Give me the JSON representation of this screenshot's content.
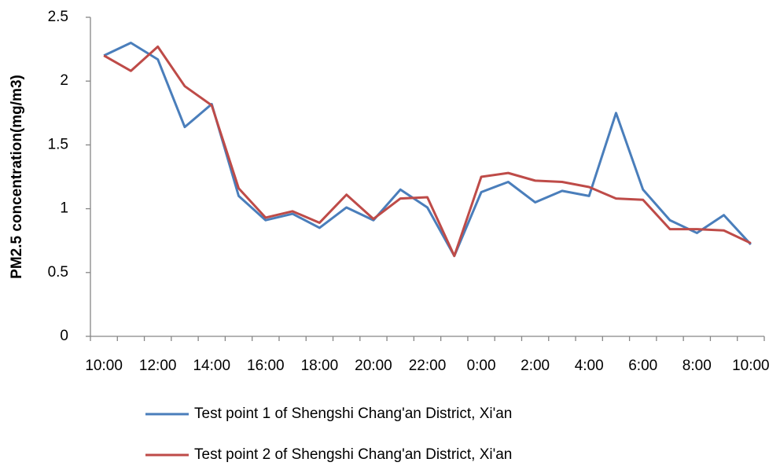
{
  "chart_data": {
    "type": "line",
    "y_label": "PM2.5 concentration(mg/m3)",
    "categories": [
      "10:00",
      null,
      "12:00",
      null,
      "14:00",
      null,
      "16:00",
      null,
      "18:00",
      null,
      "20:00",
      null,
      "22:00",
      null,
      "0:00",
      null,
      "2:00",
      null,
      "4:00",
      null,
      "6:00",
      null,
      "8:00",
      null,
      "10:00"
    ],
    "series": [
      {
        "name": "Test point 1 of Shengshi Chang'an District, Xi'an",
        "color": "#4a7ebb",
        "values": [
          2.2,
          2.3,
          2.17,
          1.64,
          1.82,
          1.1,
          0.91,
          0.96,
          0.85,
          1.01,
          0.91,
          1.15,
          1.01,
          0.63,
          1.13,
          1.21,
          1.05,
          1.14,
          1.1,
          1.75,
          1.15,
          0.91,
          0.81,
          0.95,
          0.72
        ]
      },
      {
        "name": "Test point 2 of Shengshi Chang'an District, Xi'an",
        "color": "#be4b48",
        "values": [
          2.2,
          2.08,
          2.27,
          1.96,
          1.81,
          1.16,
          0.93,
          0.98,
          0.89,
          1.11,
          0.92,
          1.08,
          1.09,
          0.63,
          1.25,
          1.28,
          1.22,
          1.21,
          1.17,
          1.08,
          1.07,
          0.84,
          0.84,
          0.83,
          0.73
        ]
      }
    ],
    "ylim": [
      0,
      2.5
    ],
    "yticks": [
      0,
      0.5,
      1,
      1.5,
      2,
      2.5
    ],
    "grid": false,
    "legend": "bottom"
  }
}
